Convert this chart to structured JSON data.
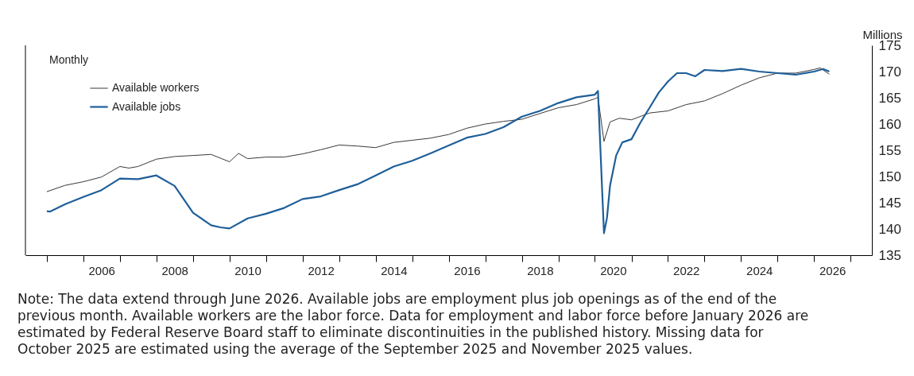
{
  "chart_data": {
    "type": "line",
    "subtitle": "Monthly",
    "ylabel": "Millions",
    "xlim": [
      "2004-06",
      "2027-08"
    ],
    "ylim": [
      135,
      175
    ],
    "yticks": [
      135,
      140,
      145,
      150,
      155,
      160,
      165,
      170,
      175
    ],
    "xticks": [
      {
        "value": "2005-01",
        "label": null
      },
      {
        "value": "2006-01",
        "label": null
      },
      {
        "value": "2007-01",
        "label": null
      },
      {
        "value": "2008-01",
        "label": null
      },
      {
        "value": "2009-01",
        "label": null
      },
      {
        "value": "2010-01",
        "label": null
      },
      {
        "value": "2011-01",
        "label": null
      },
      {
        "value": "2012-01",
        "label": null
      },
      {
        "value": "2013-01",
        "label": null
      },
      {
        "value": "2014-01",
        "label": null
      },
      {
        "value": "2015-01",
        "label": null
      },
      {
        "value": "2016-01",
        "label": null
      },
      {
        "value": "2017-01",
        "label": null
      },
      {
        "value": "2018-01",
        "label": null
      },
      {
        "value": "2019-01",
        "label": null
      },
      {
        "value": "2020-01",
        "label": null
      },
      {
        "value": "2021-01",
        "label": null
      },
      {
        "value": "2022-01",
        "label": null
      },
      {
        "value": "2023-01",
        "label": null
      },
      {
        "value": "2024-01",
        "label": null
      },
      {
        "value": "2025-01",
        "label": null
      },
      {
        "value": "2026-01",
        "label": null
      },
      {
        "value": "2027-01",
        "label": null
      },
      {
        "value": "2006-07",
        "label": "2006"
      },
      {
        "value": "2008-07",
        "label": "2008"
      },
      {
        "value": "2010-07",
        "label": "2010"
      },
      {
        "value": "2012-07",
        "label": "2012"
      },
      {
        "value": "2014-07",
        "label": "2014"
      },
      {
        "value": "2016-07",
        "label": "2016"
      },
      {
        "value": "2018-07",
        "label": "2018"
      },
      {
        "value": "2020-07",
        "label": "2020"
      },
      {
        "value": "2022-07",
        "label": "2022"
      },
      {
        "value": "2024-07",
        "label": "2024"
      },
      {
        "value": "2026-07",
        "label": "2026"
      }
    ],
    "grid": false,
    "legend": "top left",
    "marker": "none",
    "line_style": "solid",
    "series": [
      {
        "name": "Available workers",
        "color": "#222222",
        "x": [
          "2005-01",
          "2005-07",
          "2006-01",
          "2006-07",
          "2007-01",
          "2007-04",
          "2007-07",
          "2008-01",
          "2008-07",
          "2009-01",
          "2009-07",
          "2009-10",
          "2010-01",
          "2010-04",
          "2010-07",
          "2011-01",
          "2011-07",
          "2012-01",
          "2012-07",
          "2013-01",
          "2013-07",
          "2014-01",
          "2014-07",
          "2015-01",
          "2015-07",
          "2016-01",
          "2016-07",
          "2017-01",
          "2017-07",
          "2018-01",
          "2018-07",
          "2019-01",
          "2019-07",
          "2020-01",
          "2020-02",
          "2020-04",
          "2020-06",
          "2020-09",
          "2021-01",
          "2021-07",
          "2022-01",
          "2022-07",
          "2023-01",
          "2023-07",
          "2024-01",
          "2024-07",
          "2025-01",
          "2025-07",
          "2026-01",
          "2026-03",
          "2026-06"
        ],
        "values": [
          147.1,
          148.3,
          149.0,
          149.9,
          151.9,
          151.6,
          151.9,
          153.3,
          153.8,
          154.0,
          154.2,
          153.5,
          152.8,
          154.4,
          153.4,
          153.7,
          153.7,
          154.3,
          155.1,
          156.0,
          155.8,
          155.5,
          156.5,
          156.9,
          157.3,
          158.0,
          159.2,
          160.0,
          160.5,
          160.9,
          162.0,
          163.1,
          163.7,
          164.8,
          165.1,
          156.7,
          160.4,
          161.1,
          160.8,
          162.1,
          162.5,
          163.7,
          164.4,
          165.8,
          167.4,
          168.8,
          169.7,
          169.7,
          170.4,
          170.7,
          169.5
        ]
      },
      {
        "name": "Available jobs",
        "color": "#1f5f99",
        "x": [
          "2005-01",
          "2005-02",
          "2005-07",
          "2006-01",
          "2006-07",
          "2007-01",
          "2007-07",
          "2008-01",
          "2008-07",
          "2009-01",
          "2009-07",
          "2009-10",
          "2010-01",
          "2010-07",
          "2011-01",
          "2011-07",
          "2012-01",
          "2012-07",
          "2013-01",
          "2013-07",
          "2014-01",
          "2014-07",
          "2015-01",
          "2015-07",
          "2016-01",
          "2016-07",
          "2017-01",
          "2017-07",
          "2018-01",
          "2018-07",
          "2019-01",
          "2019-07",
          "2020-01",
          "2020-02",
          "2020-04",
          "2020-05",
          "2020-06",
          "2020-08",
          "2020-10",
          "2021-01",
          "2021-04",
          "2021-07",
          "2021-10",
          "2022-01",
          "2022-04",
          "2022-07",
          "2022-10",
          "2023-01",
          "2023-07",
          "2024-01",
          "2024-07",
          "2025-01",
          "2025-07",
          "2026-01",
          "2026-04",
          "2026-06"
        ],
        "values": [
          143.4,
          143.3,
          144.7,
          146.1,
          147.4,
          149.6,
          149.5,
          150.2,
          148.2,
          143.1,
          140.7,
          140.3,
          140.1,
          142.0,
          142.9,
          144.0,
          145.7,
          146.2,
          147.4,
          148.5,
          150.2,
          151.9,
          153.0,
          154.4,
          155.9,
          157.4,
          158.1,
          159.4,
          161.4,
          162.5,
          164.0,
          165.1,
          165.6,
          166.3,
          139.2,
          142.1,
          148.3,
          154.0,
          156.5,
          157.1,
          160.3,
          163.1,
          166.0,
          168.1,
          169.7,
          169.7,
          169.1,
          170.3,
          170.1,
          170.5,
          170.0,
          169.7,
          169.4,
          170.0,
          170.5,
          170.0
        ]
      }
    ],
    "annotations": [
      "Note: The data extend through June 2026. Available jobs are employment plus job openings as of the end of the previous month. Available workers are the labor force. Data for employment and labor force before January 2026 are estimated by Federal Reserve Board staff to eliminate discontinuities in the published history. Missing data for October 2025 are estimated using the average of the September 2025 and November 2025 values."
    ]
  }
}
